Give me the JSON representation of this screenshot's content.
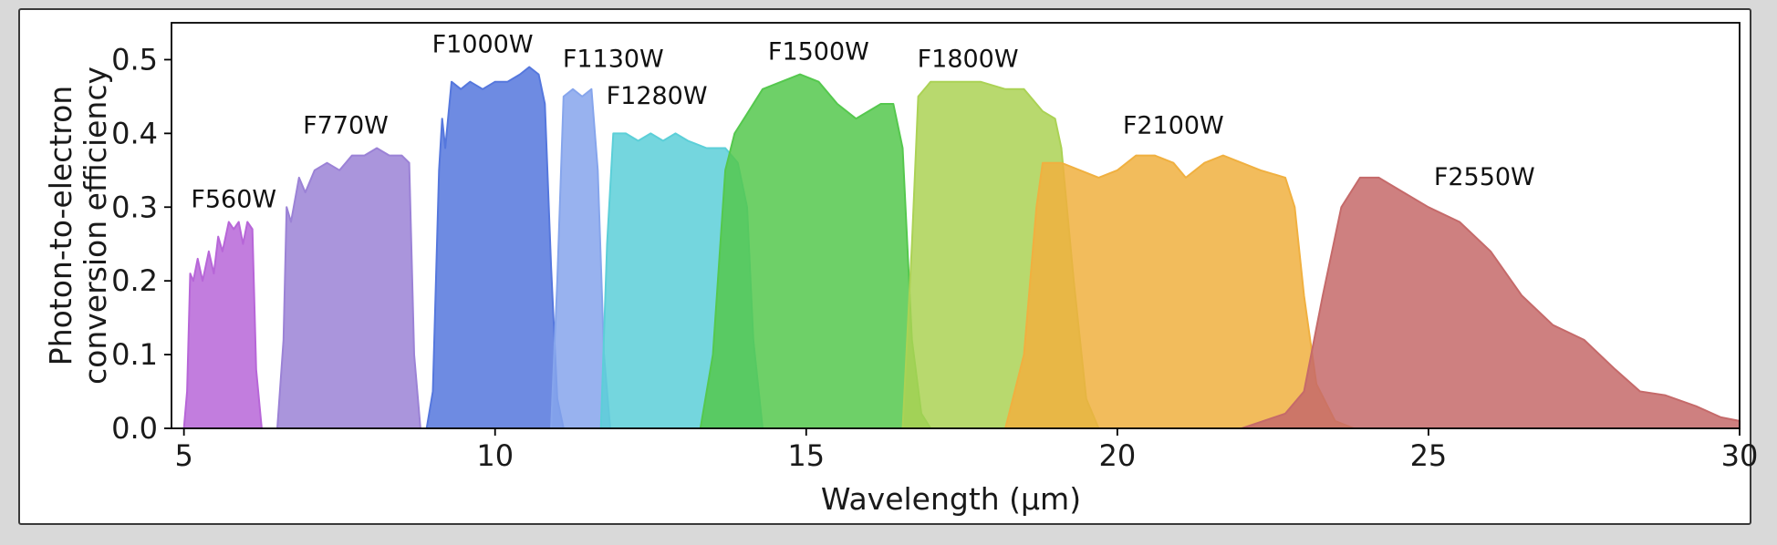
{
  "chart_data": {
    "type": "area",
    "title": "",
    "xlabel": "Wavelength (μm)",
    "ylabel": [
      "Photon-to-electron",
      "conversion efficiency"
    ],
    "xlim": [
      4.8,
      30
    ],
    "ylim": [
      0,
      0.55
    ],
    "xticks": [
      5,
      10,
      15,
      20,
      25,
      30
    ],
    "yticks": [
      0.0,
      0.1,
      0.2,
      0.3,
      0.4,
      0.5
    ],
    "ytick_labels": [
      "0.0",
      "0.1",
      "0.2",
      "0.3",
      "0.4",
      "0.5"
    ],
    "grid": false,
    "series": [
      {
        "name": "F560W",
        "color": "#b766d8",
        "label_x": 5.8,
        "label_y": 0.3,
        "points": [
          [
            5.0,
            0
          ],
          [
            5.05,
            0.05
          ],
          [
            5.1,
            0.21
          ],
          [
            5.15,
            0.2
          ],
          [
            5.22,
            0.23
          ],
          [
            5.3,
            0.2
          ],
          [
            5.4,
            0.24
          ],
          [
            5.48,
            0.21
          ],
          [
            5.55,
            0.26
          ],
          [
            5.62,
            0.24
          ],
          [
            5.72,
            0.28
          ],
          [
            5.8,
            0.27
          ],
          [
            5.88,
            0.28
          ],
          [
            5.95,
            0.25
          ],
          [
            6.02,
            0.28
          ],
          [
            6.1,
            0.27
          ],
          [
            6.16,
            0.08
          ],
          [
            6.25,
            0
          ]
        ]
      },
      {
        "name": "F770W",
        "color": "#9b82d6",
        "label_x": 7.6,
        "label_y": 0.4,
        "points": [
          [
            6.5,
            0
          ],
          [
            6.6,
            0.12
          ],
          [
            6.65,
            0.3
          ],
          [
            6.72,
            0.28
          ],
          [
            6.85,
            0.34
          ],
          [
            6.95,
            0.32
          ],
          [
            7.1,
            0.35
          ],
          [
            7.3,
            0.36
          ],
          [
            7.5,
            0.35
          ],
          [
            7.7,
            0.37
          ],
          [
            7.9,
            0.37
          ],
          [
            8.1,
            0.38
          ],
          [
            8.3,
            0.37
          ],
          [
            8.5,
            0.37
          ],
          [
            8.62,
            0.36
          ],
          [
            8.7,
            0.1
          ],
          [
            8.8,
            0
          ]
        ]
      },
      {
        "name": "F1000W",
        "color": "#5577dd",
        "label_x": 9.8,
        "label_y": 0.51,
        "points": [
          [
            8.9,
            0
          ],
          [
            9.0,
            0.05
          ],
          [
            9.1,
            0.35
          ],
          [
            9.15,
            0.42
          ],
          [
            9.2,
            0.38
          ],
          [
            9.3,
            0.47
          ],
          [
            9.45,
            0.46
          ],
          [
            9.6,
            0.47
          ],
          [
            9.8,
            0.46
          ],
          [
            10.0,
            0.47
          ],
          [
            10.2,
            0.47
          ],
          [
            10.4,
            0.48
          ],
          [
            10.55,
            0.49
          ],
          [
            10.7,
            0.48
          ],
          [
            10.8,
            0.44
          ],
          [
            10.9,
            0.22
          ],
          [
            11.0,
            0.04
          ],
          [
            11.1,
            0
          ]
        ]
      },
      {
        "name": "F1130W",
        "color": "#86a5ec",
        "label_x": 11.9,
        "label_y": 0.49,
        "points": [
          [
            10.9,
            0
          ],
          [
            11.0,
            0.2
          ],
          [
            11.1,
            0.45
          ],
          [
            11.25,
            0.46
          ],
          [
            11.4,
            0.45
          ],
          [
            11.55,
            0.46
          ],
          [
            11.65,
            0.35
          ],
          [
            11.75,
            0.1
          ],
          [
            11.85,
            0
          ]
        ]
      },
      {
        "name": "F1280W",
        "color": "#5ccfd8",
        "label_x": 12.6,
        "label_y": 0.44,
        "points": [
          [
            11.7,
            0
          ],
          [
            11.8,
            0.25
          ],
          [
            11.9,
            0.4
          ],
          [
            12.1,
            0.4
          ],
          [
            12.3,
            0.39
          ],
          [
            12.5,
            0.4
          ],
          [
            12.7,
            0.39
          ],
          [
            12.9,
            0.4
          ],
          [
            13.1,
            0.39
          ],
          [
            13.4,
            0.38
          ],
          [
            13.7,
            0.38
          ],
          [
            13.9,
            0.36
          ],
          [
            14.05,
            0.3
          ],
          [
            14.15,
            0.12
          ],
          [
            14.3,
            0
          ]
        ]
      },
      {
        "name": "F1500W",
        "color": "#55c84e",
        "label_x": 15.2,
        "label_y": 0.5,
        "points": [
          [
            13.3,
            0
          ],
          [
            13.5,
            0.1
          ],
          [
            13.7,
            0.35
          ],
          [
            13.85,
            0.4
          ],
          [
            14.0,
            0.42
          ],
          [
            14.3,
            0.46
          ],
          [
            14.6,
            0.47
          ],
          [
            14.9,
            0.48
          ],
          [
            15.2,
            0.47
          ],
          [
            15.5,
            0.44
          ],
          [
            15.8,
            0.42
          ],
          [
            16.0,
            0.43
          ],
          [
            16.2,
            0.44
          ],
          [
            16.4,
            0.44
          ],
          [
            16.55,
            0.38
          ],
          [
            16.7,
            0.12
          ],
          [
            16.85,
            0.02
          ],
          [
            17.0,
            0
          ]
        ]
      },
      {
        "name": "F1800W",
        "color": "#abd255",
        "label_x": 17.6,
        "label_y": 0.49,
        "points": [
          [
            16.55,
            0
          ],
          [
            16.7,
            0.25
          ],
          [
            16.8,
            0.45
          ],
          [
            17.0,
            0.47
          ],
          [
            17.4,
            0.47
          ],
          [
            17.8,
            0.47
          ],
          [
            18.2,
            0.46
          ],
          [
            18.5,
            0.46
          ],
          [
            18.8,
            0.43
          ],
          [
            19.0,
            0.42
          ],
          [
            19.1,
            0.38
          ],
          [
            19.3,
            0.2
          ],
          [
            19.5,
            0.04
          ],
          [
            19.7,
            0
          ]
        ]
      },
      {
        "name": "F2100W",
        "color": "#f0b040",
        "label_x": 20.9,
        "label_y": 0.4,
        "points": [
          [
            18.2,
            0
          ],
          [
            18.5,
            0.1
          ],
          [
            18.7,
            0.3
          ],
          [
            18.8,
            0.36
          ],
          [
            19.1,
            0.36
          ],
          [
            19.4,
            0.35
          ],
          [
            19.7,
            0.34
          ],
          [
            20.0,
            0.35
          ],
          [
            20.3,
            0.37
          ],
          [
            20.6,
            0.37
          ],
          [
            20.9,
            0.36
          ],
          [
            21.1,
            0.34
          ],
          [
            21.4,
            0.36
          ],
          [
            21.7,
            0.37
          ],
          [
            22.0,
            0.36
          ],
          [
            22.3,
            0.35
          ],
          [
            22.7,
            0.34
          ],
          [
            22.85,
            0.3
          ],
          [
            23.0,
            0.18
          ],
          [
            23.2,
            0.06
          ],
          [
            23.5,
            0.01
          ],
          [
            23.8,
            0
          ]
        ]
      },
      {
        "name": "F2550W",
        "color": "#c56a6a",
        "label_x": 25.9,
        "label_y": 0.33,
        "points": [
          [
            22.0,
            0
          ],
          [
            22.7,
            0.02
          ],
          [
            23.0,
            0.05
          ],
          [
            23.3,
            0.18
          ],
          [
            23.6,
            0.3
          ],
          [
            23.9,
            0.34
          ],
          [
            24.2,
            0.34
          ],
          [
            24.6,
            0.32
          ],
          [
            25.0,
            0.3
          ],
          [
            25.5,
            0.28
          ],
          [
            26.0,
            0.24
          ],
          [
            26.5,
            0.18
          ],
          [
            27.0,
            0.14
          ],
          [
            27.5,
            0.12
          ],
          [
            28.0,
            0.08
          ],
          [
            28.4,
            0.05
          ],
          [
            28.8,
            0.045
          ],
          [
            29.3,
            0.03
          ],
          [
            29.7,
            0.015
          ],
          [
            30.0,
            0.01
          ]
        ]
      }
    ]
  }
}
